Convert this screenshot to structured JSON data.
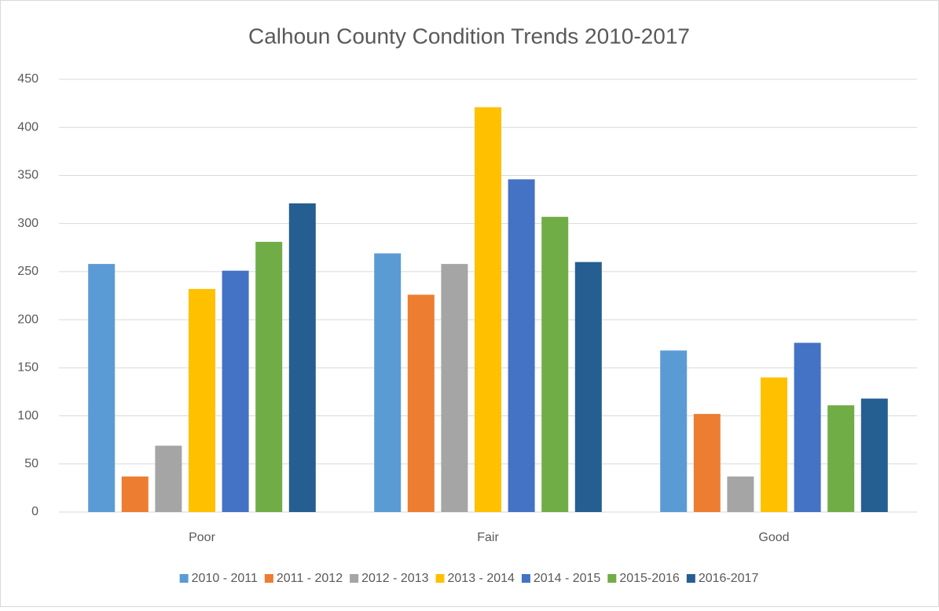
{
  "chart_data": {
    "type": "bar",
    "title": "Calhoun County Condition Trends 2010-2017",
    "categories": [
      "Poor",
      "Fair",
      "Good"
    ],
    "series": [
      {
        "name": "2010 - 2011",
        "color": "#5b9bd5",
        "values": [
          258,
          269,
          168
        ]
      },
      {
        "name": "2011 - 2012",
        "color": "#ed7d31",
        "values": [
          37,
          226,
          102
        ]
      },
      {
        "name": "2012 - 2013",
        "color": "#a5a5a5",
        "values": [
          69,
          258,
          37
        ]
      },
      {
        "name": "2013 - 2014",
        "color": "#ffc000",
        "values": [
          232,
          421,
          140
        ]
      },
      {
        "name": "2014 - 2015",
        "color": "#4472c4",
        "values": [
          251,
          346,
          176
        ]
      },
      {
        "name": "2015-2016",
        "color": "#70ad47",
        "values": [
          281,
          307,
          111
        ]
      },
      {
        "name": "2016-2017",
        "color": "#255e91",
        "values": [
          321,
          260,
          118
        ]
      }
    ],
    "ylim": [
      0,
      450
    ],
    "yticks": [
      0,
      50,
      100,
      150,
      200,
      250,
      300,
      350,
      400,
      450
    ],
    "grid": true,
    "legend": "bottom"
  }
}
